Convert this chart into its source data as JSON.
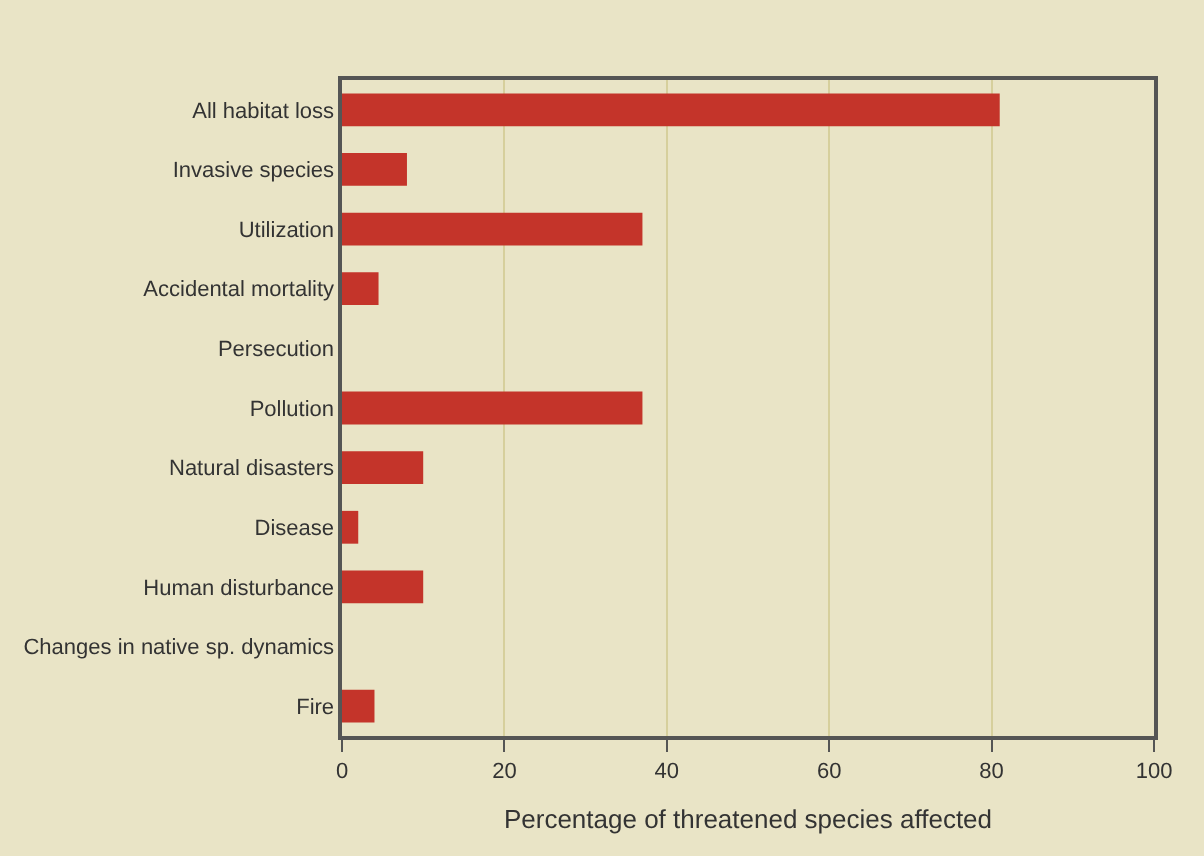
{
  "chart_data": {
    "type": "bar",
    "orientation": "horizontal",
    "xlabel": "Percentage of threatened species affected",
    "categories": [
      "All habitat loss",
      "Invasive species",
      "Utilization",
      "Accidental mortality",
      "Persecution",
      "Pollution",
      "Natural disasters",
      "Disease",
      "Human disturbance",
      "Changes in native sp. dynamics",
      "Fire"
    ],
    "values": [
      81,
      8,
      37,
      4.5,
      0,
      37,
      10,
      2,
      10,
      0,
      4
    ],
    "color": "#c4342a",
    "xlim": [
      0,
      100
    ],
    "xticks": [
      0,
      20,
      40,
      60,
      80,
      100
    ],
    "grid": "x",
    "legend": false
  }
}
